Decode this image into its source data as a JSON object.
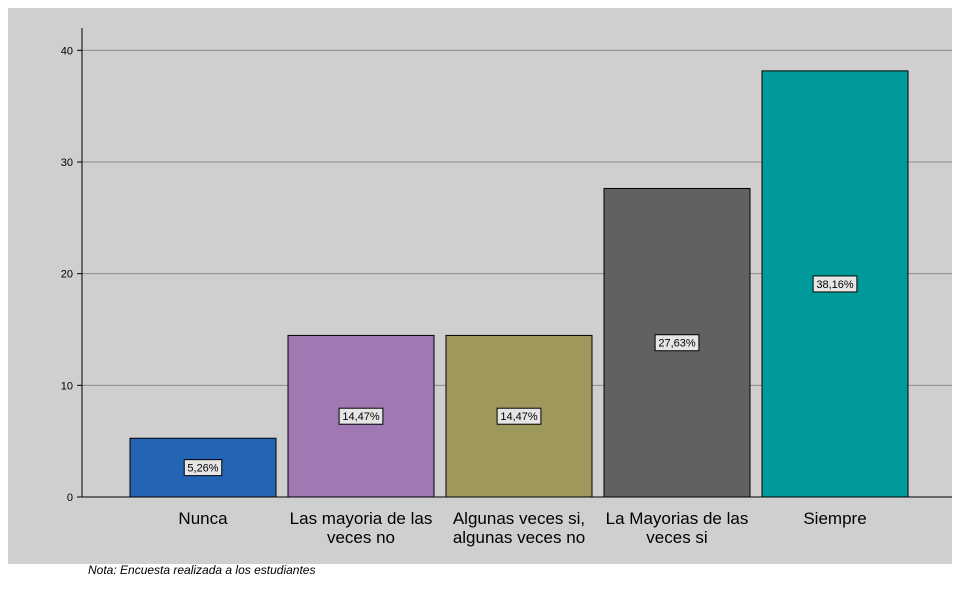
{
  "chart_data": {
    "type": "bar",
    "categories": [
      [
        "Nunca"
      ],
      [
        "Las mayoria de las",
        "veces no"
      ],
      [
        "Algunas veces si,",
        "algunas veces no"
      ],
      [
        "La Mayorias de las",
        "veces si"
      ],
      [
        "Siempre"
      ]
    ],
    "values": [
      5.26,
      14.47,
      14.47,
      27.63,
      38.16
    ],
    "data_labels": [
      "5,26%",
      "14,47%",
      "14,47%",
      "27,63%",
      "38,16%"
    ],
    "colors": [
      "#2464b4",
      "#a079b4",
      "#9f985c",
      "#636160",
      "#009a9a"
    ],
    "ylim": [
      0,
      42
    ],
    "yticks": [
      0,
      10,
      20,
      30,
      40
    ],
    "grid": true,
    "background": "#cfcfcf",
    "title": "",
    "xlabel": "",
    "ylabel": ""
  },
  "note": "Nota: Encuesta realizada a los estudiantes"
}
